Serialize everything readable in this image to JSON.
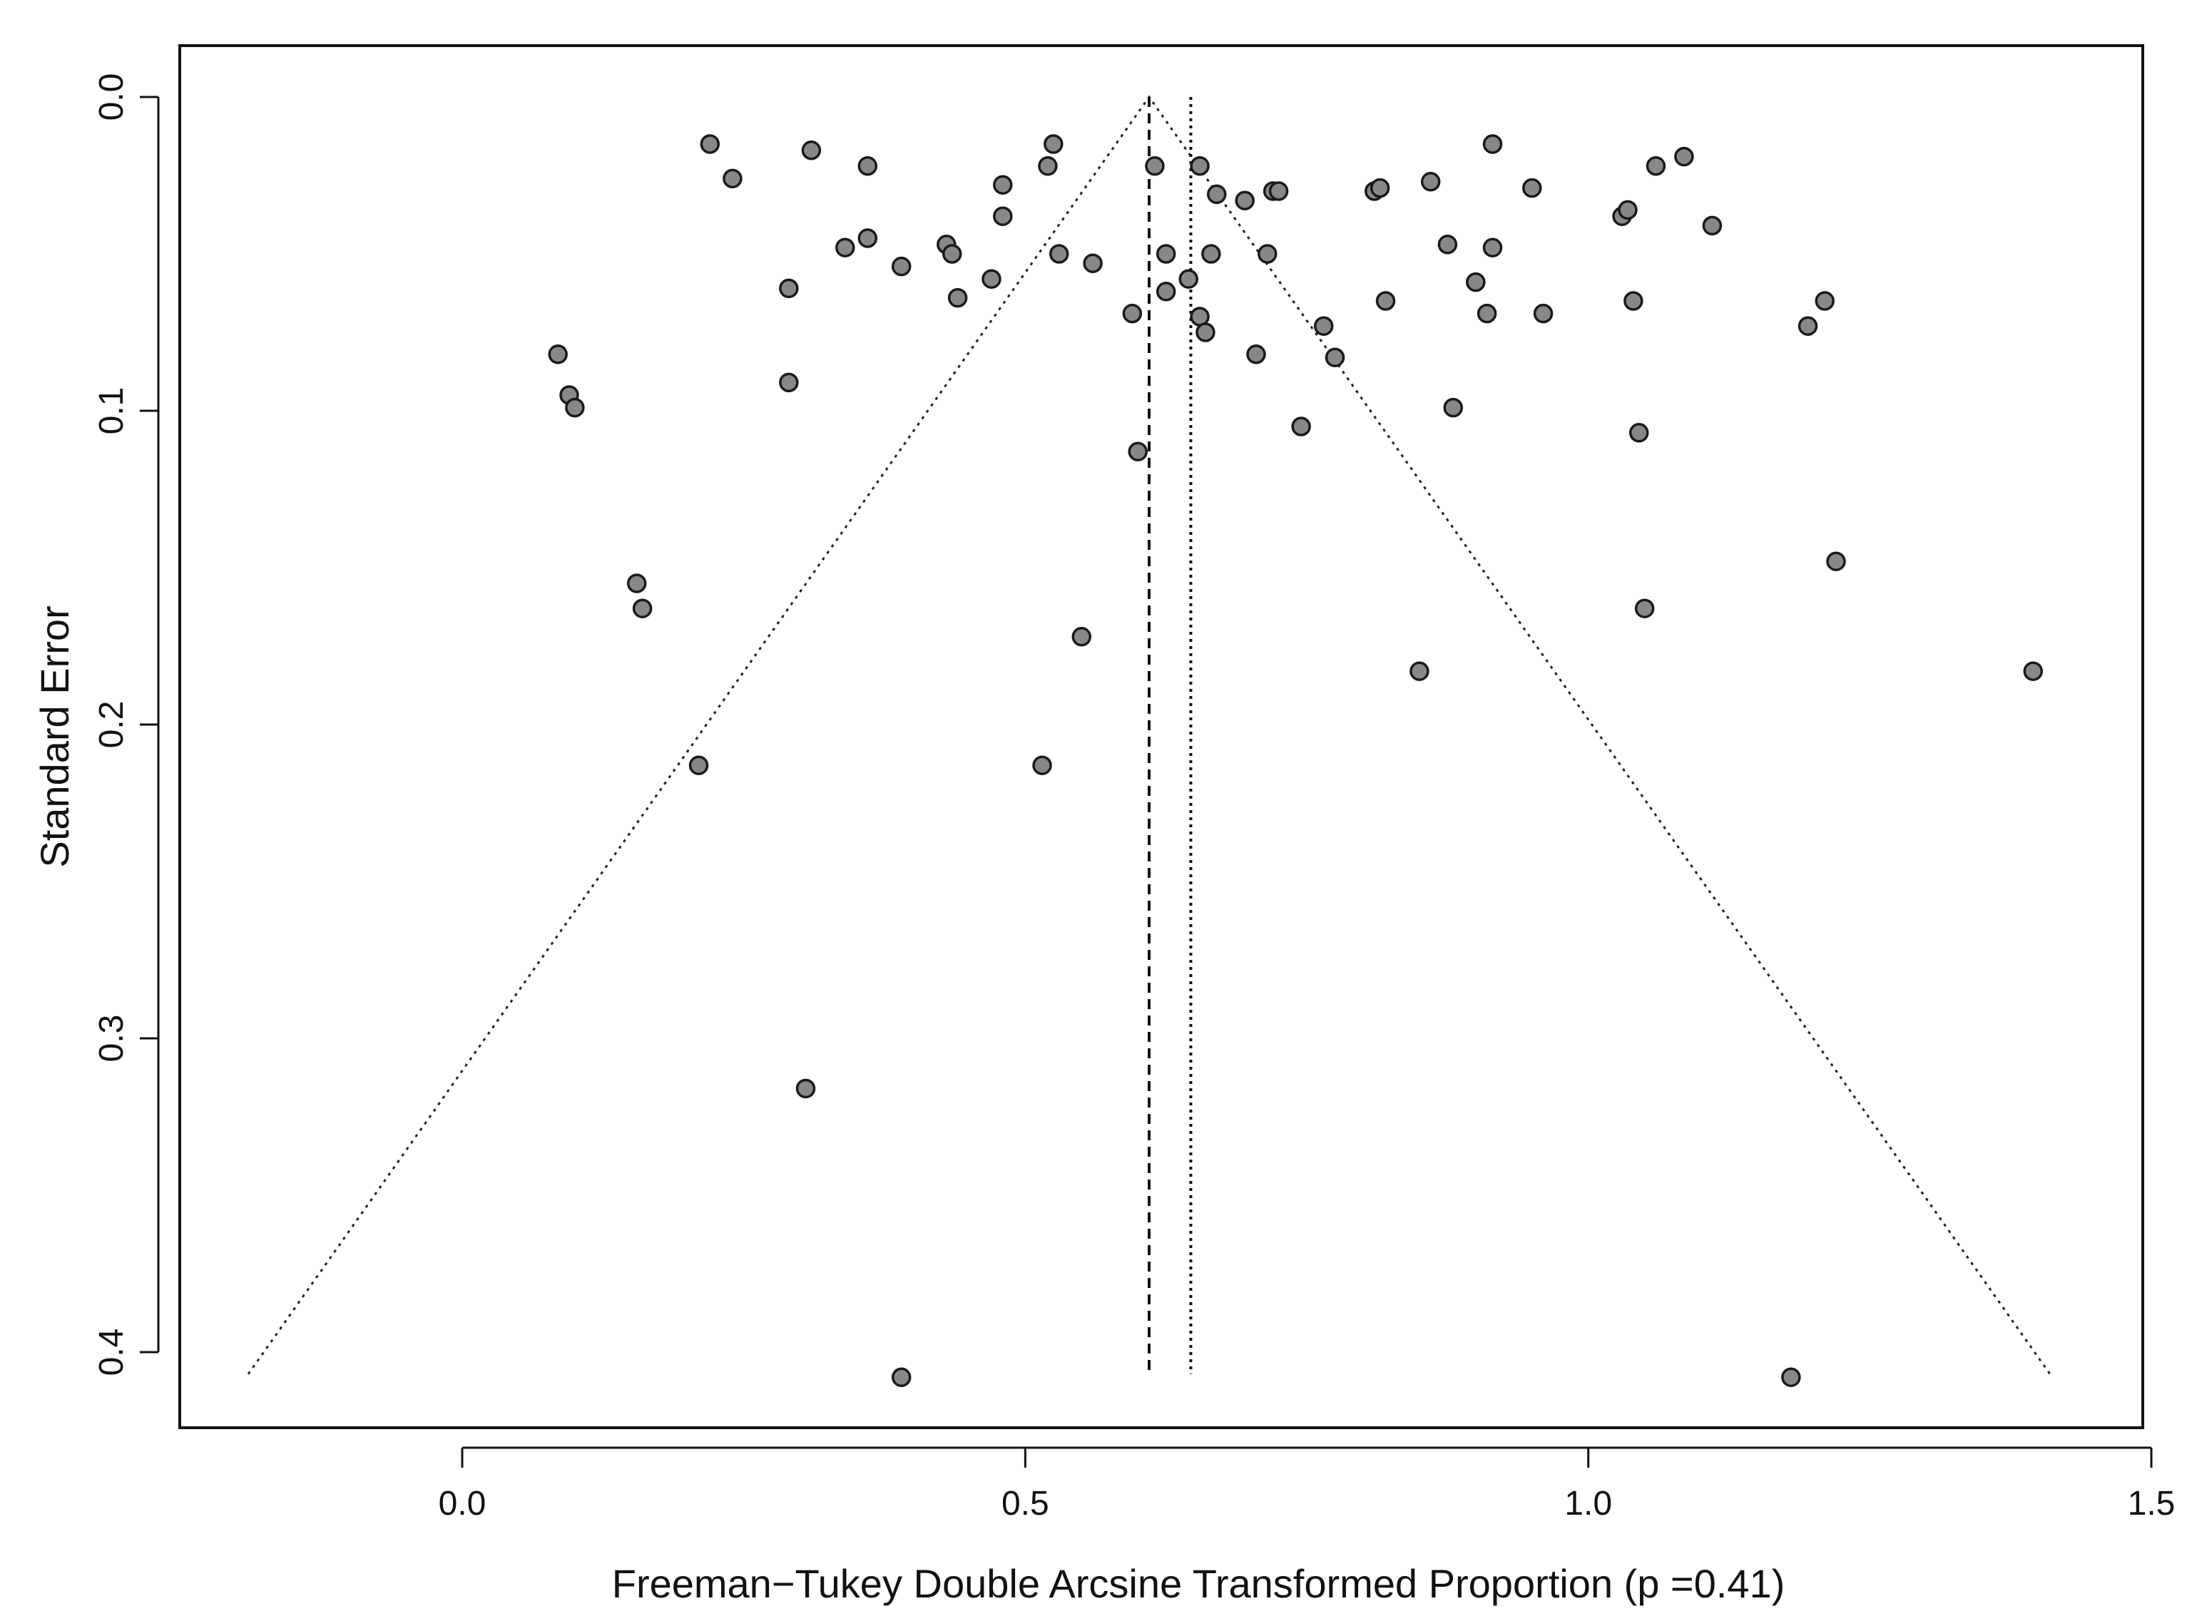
{
  "chart_data": {
    "type": "scatter",
    "title": "",
    "xlabel": "Freeman−Tukey Double Arcsine Transformed Proportion  (p =0.41)",
    "ylabel": "Standard Error",
    "xlim": [
      -0.25,
      1.5
    ],
    "ylim": [
      0.0,
      0.425
    ],
    "y_reversed": true,
    "x_ticks": [
      0.0,
      0.5,
      1.0,
      1.5
    ],
    "x_tick_labels": [
      "0.0",
      "0.5",
      "1.0",
      "1.5"
    ],
    "y_ticks": [
      0.0,
      0.1,
      0.2,
      0.3,
      0.4
    ],
    "y_tick_labels": [
      "0.0",
      "0.1",
      "0.2",
      "0.3",
      "0.4"
    ],
    "grid": false,
    "pooled_estimate_dashed": 0.61,
    "pooled_estimate_dotted": 0.647,
    "funnel": {
      "apex": [
        0.61,
        0.0
      ],
      "left_base": [
        -0.19,
        0.407
      ],
      "right_base": [
        1.41,
        0.407
      ]
    },
    "point_color": "#888888",
    "points": [
      {
        "x": 0.22,
        "y": 0.015
      },
      {
        "x": 0.31,
        "y": 0.017
      },
      {
        "x": 0.24,
        "y": 0.026
      },
      {
        "x": 0.36,
        "y": 0.022
      },
      {
        "x": 0.525,
        "y": 0.015
      },
      {
        "x": 0.52,
        "y": 0.022
      },
      {
        "x": 0.48,
        "y": 0.028
      },
      {
        "x": 0.48,
        "y": 0.038
      },
      {
        "x": 0.36,
        "y": 0.045
      },
      {
        "x": 0.34,
        "y": 0.048
      },
      {
        "x": 0.43,
        "y": 0.047
      },
      {
        "x": 0.435,
        "y": 0.05
      },
      {
        "x": 0.39,
        "y": 0.054
      },
      {
        "x": 0.53,
        "y": 0.05
      },
      {
        "x": 0.56,
        "y": 0.053
      },
      {
        "x": 0.47,
        "y": 0.058
      },
      {
        "x": 0.29,
        "y": 0.061
      },
      {
        "x": 0.44,
        "y": 0.064
      },
      {
        "x": 0.595,
        "y": 0.069
      },
      {
        "x": 0.615,
        "y": 0.022
      },
      {
        "x": 0.655,
        "y": 0.022
      },
      {
        "x": 0.67,
        "y": 0.031
      },
      {
        "x": 0.695,
        "y": 0.033
      },
      {
        "x": 0.72,
        "y": 0.03
      },
      {
        "x": 0.725,
        "y": 0.03
      },
      {
        "x": 0.625,
        "y": 0.05
      },
      {
        "x": 0.665,
        "y": 0.05
      },
      {
        "x": 0.715,
        "y": 0.05
      },
      {
        "x": 0.645,
        "y": 0.058
      },
      {
        "x": 0.625,
        "y": 0.062
      },
      {
        "x": 0.655,
        "y": 0.07
      },
      {
        "x": 0.66,
        "y": 0.075
      },
      {
        "x": 0.765,
        "y": 0.073
      },
      {
        "x": 0.705,
        "y": 0.082
      },
      {
        "x": 0.775,
        "y": 0.083
      },
      {
        "x": 0.6,
        "y": 0.113
      },
      {
        "x": 0.745,
        "y": 0.105
      },
      {
        "x": 0.81,
        "y": 0.03
      },
      {
        "x": 0.815,
        "y": 0.029
      },
      {
        "x": 0.86,
        "y": 0.027
      },
      {
        "x": 0.915,
        "y": 0.015
      },
      {
        "x": 0.95,
        "y": 0.029
      },
      {
        "x": 0.875,
        "y": 0.047
      },
      {
        "x": 0.915,
        "y": 0.048
      },
      {
        "x": 0.9,
        "y": 0.059
      },
      {
        "x": 0.82,
        "y": 0.065
      },
      {
        "x": 0.91,
        "y": 0.069
      },
      {
        "x": 0.96,
        "y": 0.069
      },
      {
        "x": 0.88,
        "y": 0.099
      },
      {
        "x": 1.03,
        "y": 0.038
      },
      {
        "x": 1.035,
        "y": 0.036
      },
      {
        "x": 1.06,
        "y": 0.022
      },
      {
        "x": 1.085,
        "y": 0.019
      },
      {
        "x": 1.11,
        "y": 0.041
      },
      {
        "x": 1.04,
        "y": 0.065
      },
      {
        "x": 1.21,
        "y": 0.065
      },
      {
        "x": 1.195,
        "y": 0.073
      },
      {
        "x": 1.045,
        "y": 0.107
      },
      {
        "x": 0.085,
        "y": 0.082
      },
      {
        "x": 0.095,
        "y": 0.095
      },
      {
        "x": 0.1,
        "y": 0.099
      },
      {
        "x": 0.29,
        "y": 0.091
      },
      {
        "x": 0.155,
        "y": 0.155
      },
      {
        "x": 0.16,
        "y": 0.163
      },
      {
        "x": 0.55,
        "y": 0.172
      },
      {
        "x": 0.21,
        "y": 0.213
      },
      {
        "x": 0.515,
        "y": 0.213
      },
      {
        "x": 0.85,
        "y": 0.183
      },
      {
        "x": 1.05,
        "y": 0.163
      },
      {
        "x": 1.22,
        "y": 0.148
      },
      {
        "x": 1.395,
        "y": 0.183
      },
      {
        "x": 0.305,
        "y": 0.316
      },
      {
        "x": 0.39,
        "y": 0.408
      },
      {
        "x": 1.18,
        "y": 0.408
      }
    ]
  }
}
